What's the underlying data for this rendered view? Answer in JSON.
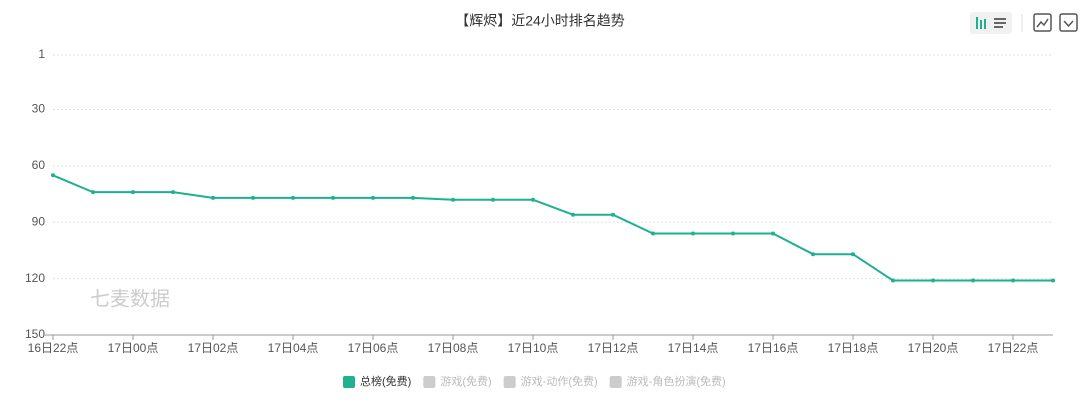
{
  "chart_data": {
    "type": "line",
    "title": "【辉烬】近24小时排名趋势",
    "watermark": "七麦数据",
    "categories": [
      "16日22点",
      null,
      "17日00点",
      null,
      "17日02点",
      null,
      "17日04点",
      null,
      "17日06点",
      null,
      "17日08点",
      null,
      "17日10点",
      null,
      "17日12点",
      null,
      "17日14点",
      null,
      "17日16点",
      null,
      "17日18点",
      null,
      "17日20点",
      null,
      "17日22点",
      null
    ],
    "series": [
      {
        "name": "总榜(免费)",
        "color": "#1fb08e",
        "values": [
          65,
          74,
          74,
          74,
          77,
          77,
          77,
          77,
          77,
          77,
          78,
          78,
          78,
          86,
          86,
          96,
          96,
          96,
          96,
          107,
          107,
          121,
          121,
          121,
          121,
          121
        ]
      }
    ],
    "inactive_legend": [
      "游戏(免费)",
      "游戏-动作(免费)",
      "游戏-角色扮演(免费)"
    ],
    "ylim": [
      1,
      150
    ],
    "yticks": [
      1,
      30,
      60,
      90,
      120,
      150
    ],
    "y_inverted": true,
    "grid": true
  }
}
